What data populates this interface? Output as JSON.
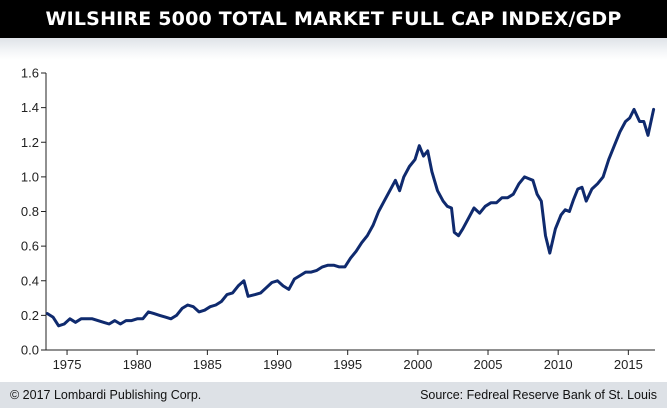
{
  "chart_data": {
    "type": "line",
    "title": "WILSHIRE 5000 TOTAL MARKET FULL CAP INDEX/GDP",
    "xlabel": "",
    "ylabel": "",
    "xlim": [
      1973.5,
      2016.9
    ],
    "ylim": [
      0,
      1.6
    ],
    "x_ticks": [
      1975,
      1980,
      1985,
      1990,
      1995,
      2000,
      2005,
      2010,
      2015
    ],
    "x_tick_labels": [
      "1975",
      "1980",
      "1985",
      "1990",
      "1995",
      "2000",
      "2005",
      "2010",
      "2015"
    ],
    "y_ticks": [
      0,
      0.2,
      0.4,
      0.6,
      0.8,
      1.0,
      1.2,
      1.4,
      1.6
    ],
    "y_tick_labels": [
      "0.0",
      "0.2",
      "0.4",
      "0.6",
      "0.8",
      "1.0",
      "1.2",
      "1.4",
      "1.6"
    ],
    "grid": false,
    "line_color": "#0f2a6e",
    "series": [
      {
        "x": [
          1973.6,
          1974.0,
          1974.4,
          1974.8,
          1975.2,
          1975.6,
          1976.0,
          1976.4,
          1976.8,
          1977.2,
          1977.6,
          1978.0,
          1978.4,
          1978.8,
          1979.2,
          1979.6,
          1980.0,
          1980.4,
          1980.8,
          1981.2,
          1981.6,
          1982.0,
          1982.4,
          1982.8,
          1983.2,
          1983.6,
          1984.0,
          1984.4,
          1984.8,
          1985.2,
          1985.6,
          1986.0,
          1986.4,
          1986.8,
          1987.2,
          1987.6,
          1987.9,
          1988.4,
          1988.8,
          1989.2,
          1989.6,
          1990.0,
          1990.4,
          1990.8,
          1991.2,
          1991.6,
          1992.0,
          1992.4,
          1992.8,
          1993.2,
          1993.6,
          1994.0,
          1994.4,
          1994.8,
          1995.2,
          1995.6,
          1996.0,
          1996.4,
          1996.8,
          1997.2,
          1997.6,
          1998.0,
          1998.4,
          1998.7,
          1999.0,
          1999.4,
          1999.8,
          2000.1,
          2000.4,
          2000.7,
          2001.0,
          2001.4,
          2001.8,
          2002.1,
          2002.4,
          2002.6,
          2002.9,
          2003.2,
          2003.6,
          2004.0,
          2004.4,
          2004.8,
          2005.2,
          2005.6,
          2006.0,
          2006.4,
          2006.8,
          2007.2,
          2007.6,
          2007.9,
          2008.2,
          2008.5,
          2008.8,
          2009.1,
          2009.4,
          2009.8,
          2010.2,
          2010.5,
          2010.8,
          2011.1,
          2011.4,
          2011.7,
          2012.0,
          2012.4,
          2012.8,
          2013.2,
          2013.6,
          2014.0,
          2014.4,
          2014.8,
          2015.1,
          2015.4,
          2015.8,
          2016.1,
          2016.4,
          2016.8
        ],
        "y": [
          0.21,
          0.19,
          0.14,
          0.15,
          0.18,
          0.16,
          0.18,
          0.18,
          0.18,
          0.17,
          0.16,
          0.15,
          0.17,
          0.15,
          0.17,
          0.17,
          0.18,
          0.18,
          0.22,
          0.21,
          0.2,
          0.19,
          0.18,
          0.2,
          0.24,
          0.26,
          0.25,
          0.22,
          0.23,
          0.25,
          0.26,
          0.28,
          0.32,
          0.33,
          0.37,
          0.4,
          0.31,
          0.32,
          0.33,
          0.36,
          0.39,
          0.4,
          0.37,
          0.35,
          0.41,
          0.43,
          0.45,
          0.45,
          0.46,
          0.48,
          0.49,
          0.49,
          0.48,
          0.48,
          0.53,
          0.57,
          0.62,
          0.66,
          0.72,
          0.8,
          0.86,
          0.92,
          0.98,
          0.92,
          1.0,
          1.06,
          1.1,
          1.18,
          1.12,
          1.15,
          1.03,
          0.92,
          0.86,
          0.83,
          0.82,
          0.68,
          0.66,
          0.7,
          0.76,
          0.82,
          0.79,
          0.83,
          0.85,
          0.85,
          0.88,
          0.88,
          0.9,
          0.96,
          1.0,
          0.99,
          0.98,
          0.9,
          0.86,
          0.66,
          0.56,
          0.7,
          0.78,
          0.81,
          0.8,
          0.87,
          0.93,
          0.94,
          0.86,
          0.93,
          0.96,
          1.0,
          1.1,
          1.18,
          1.26,
          1.32,
          1.34,
          1.39,
          1.32,
          1.32,
          1.24,
          1.39
        ]
      }
    ]
  },
  "footer": {
    "copyright": "© 2017 Lombardi Publishing Corp.",
    "source": "Source: Fedreal Reserve Bank of St. Louis"
  }
}
